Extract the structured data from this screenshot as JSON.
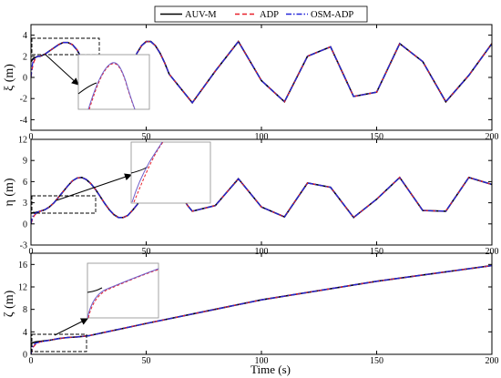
{
  "chart_data": [
    {
      "type": "line",
      "ylabel": "ξ (m)",
      "xlim": [
        0,
        200
      ],
      "ylim": [
        -5,
        5
      ],
      "yticks": [
        -4,
        -2,
        0,
        2,
        4
      ],
      "xticks": [
        0,
        50,
        100,
        150,
        200
      ],
      "legend": "top-center",
      "series": [
        {
          "name": "AUV-M",
          "color": "#000000",
          "style": "solid",
          "x": [
            0,
            1,
            2,
            3,
            4,
            5,
            6,
            8,
            10,
            12,
            14,
            16,
            18,
            20,
            22,
            24,
            26,
            28,
            30,
            32,
            34,
            36,
            38,
            40,
            42,
            44,
            46,
            48,
            50,
            52,
            54,
            56,
            58,
            60,
            70,
            80,
            90,
            100,
            110,
            120,
            130,
            140,
            150,
            160,
            170,
            180,
            190,
            200
          ],
          "y": [
            1.5,
            1.8,
            1.9,
            2.0,
            2.0,
            2.1,
            2.2,
            2.5,
            2.8,
            3.1,
            3.3,
            3.3,
            3.1,
            2.6,
            1.8,
            0.9,
            -0.1,
            -1.1,
            -1.9,
            -2.3,
            -2.4,
            -2.1,
            -1.5,
            -0.6,
            0.4,
            1.4,
            2.3,
            3.0,
            3.4,
            3.4,
            3.0,
            2.3,
            1.4,
            0.3,
            -2.4,
            0.6,
            3.4,
            -0.3,
            -2.3,
            2.0,
            2.9,
            -1.8,
            -1.4,
            3.2,
            1.5,
            -2.3,
            0.2,
            3.2
          ]
        },
        {
          "name": "ADP",
          "color": "#e8202a",
          "style": "dashed",
          "x": [
            0,
            0.5,
            1,
            1.5,
            2,
            3,
            4,
            5,
            6,
            8,
            10,
            12,
            14,
            16,
            18,
            20,
            22,
            24,
            26,
            28,
            30,
            32,
            34,
            36,
            38,
            40,
            42,
            44,
            46,
            48,
            50,
            52,
            54,
            56,
            58,
            60,
            70,
            80,
            90,
            100,
            110,
            120,
            130,
            140,
            150,
            160,
            170,
            180,
            190,
            200
          ],
          "y": [
            0,
            0.8,
            1.3,
            1.6,
            1.8,
            2.0,
            2.0,
            2.1,
            2.2,
            2.5,
            2.8,
            3.1,
            3.3,
            3.3,
            3.1,
            2.6,
            1.8,
            0.9,
            -0.1,
            -1.1,
            -1.9,
            -2.3,
            -2.4,
            -2.1,
            -1.5,
            -0.6,
            0.4,
            1.4,
            2.3,
            3.0,
            3.4,
            3.4,
            3.0,
            2.3,
            1.4,
            0.3,
            -2.4,
            0.6,
            3.4,
            -0.3,
            -2.3,
            2.0,
            2.9,
            -1.8,
            -1.4,
            3.2,
            1.5,
            -2.3,
            0.2,
            3.2
          ]
        },
        {
          "name": "OSM-ADP",
          "color": "#2326d9",
          "style": "dashdot",
          "x": [
            0,
            0.5,
            1,
            1.5,
            2,
            3,
            4,
            5,
            6,
            8,
            10,
            12,
            14,
            16,
            18,
            20,
            22,
            24,
            26,
            28,
            30,
            32,
            34,
            36,
            38,
            40,
            42,
            44,
            46,
            48,
            50,
            52,
            54,
            56,
            58,
            60,
            70,
            80,
            90,
            100,
            110,
            120,
            130,
            140,
            150,
            160,
            170,
            180,
            190,
            200
          ],
          "y": [
            0,
            1.1,
            1.6,
            1.8,
            1.9,
            2.0,
            2.0,
            2.1,
            2.2,
            2.5,
            2.8,
            3.1,
            3.3,
            3.3,
            3.1,
            2.6,
            1.8,
            0.9,
            -0.1,
            -1.1,
            -1.9,
            -2.3,
            -2.4,
            -2.1,
            -1.5,
            -0.6,
            0.4,
            1.4,
            2.3,
            3.0,
            3.4,
            3.4,
            3.0,
            2.3,
            1.4,
            0.3,
            -2.4,
            0.6,
            3.4,
            -0.3,
            -2.3,
            2.0,
            2.9,
            -1.8,
            -1.4,
            3.2,
            1.5,
            -2.3,
            0.2,
            3.2
          ]
        }
      ]
    },
    {
      "type": "line",
      "ylabel": "η (m)",
      "xlim": [
        0,
        200
      ],
      "ylim": [
        -3,
        12
      ],
      "yticks": [
        -3,
        0,
        3,
        6,
        9,
        12
      ],
      "xticks": [
        0,
        50,
        100,
        150,
        200
      ],
      "series": [
        {
          "name": "AUV-M",
          "color": "#000000",
          "style": "solid",
          "x": [
            0,
            1,
            2,
            3,
            4,
            6,
            8,
            10,
            12,
            14,
            16,
            18,
            20,
            22,
            24,
            26,
            28,
            30,
            32,
            34,
            36,
            38,
            40,
            42,
            44,
            46,
            48,
            50,
            52,
            54,
            56,
            58,
            60,
            62,
            64,
            66,
            68,
            70,
            80,
            90,
            100,
            110,
            120,
            130,
            140,
            150,
            160,
            170,
            180,
            190,
            200
          ],
          "y": [
            1.5,
            1.6,
            1.6,
            1.7,
            1.8,
            2.0,
            2.4,
            3.0,
            3.8,
            4.6,
            5.4,
            6.1,
            6.5,
            6.6,
            6.3,
            5.7,
            4.9,
            3.9,
            2.9,
            2.0,
            1.3,
            0.9,
            0.9,
            1.2,
            1.9,
            2.7,
            3.7,
            4.6,
            5.5,
            6.2,
            6.6,
            6.6,
            6.2,
            5.5,
            4.6,
            3.6,
            2.6,
            1.8,
            2.6,
            6.4,
            2.4,
            1.0,
            5.8,
            5.2,
            0.9,
            3.5,
            6.6,
            1.9,
            1.8,
            6.6,
            5.6
          ]
        },
        {
          "name": "ADP",
          "color": "#e8202a",
          "style": "dashed",
          "x": [
            0,
            0.5,
            1,
            1.5,
            2,
            3,
            4,
            6,
            8,
            10,
            12,
            14,
            16,
            18,
            20,
            22,
            24,
            26,
            28,
            30,
            32,
            34,
            36,
            38,
            40,
            42,
            44,
            46,
            48,
            50,
            52,
            54,
            56,
            58,
            60,
            62,
            64,
            66,
            68,
            70,
            80,
            90,
            100,
            110,
            120,
            130,
            140,
            150,
            160,
            170,
            180,
            190,
            200
          ],
          "y": [
            0,
            0.5,
            0.9,
            1.2,
            1.4,
            1.6,
            1.8,
            2.0,
            2.4,
            3.0,
            3.8,
            4.6,
            5.4,
            6.1,
            6.5,
            6.6,
            6.3,
            5.7,
            4.9,
            3.9,
            2.9,
            2.0,
            1.3,
            0.9,
            0.9,
            1.2,
            1.9,
            2.7,
            3.7,
            4.6,
            5.5,
            6.2,
            6.6,
            6.6,
            6.2,
            5.5,
            4.6,
            3.6,
            2.6,
            1.8,
            2.6,
            6.4,
            2.4,
            1.0,
            5.8,
            5.2,
            0.9,
            3.5,
            6.6,
            1.9,
            1.8,
            6.6,
            5.6
          ]
        },
        {
          "name": "OSM-ADP",
          "color": "#2326d9",
          "style": "dashdot",
          "x": [
            0,
            0.5,
            1,
            1.5,
            2,
            3,
            4,
            6,
            8,
            10,
            12,
            14,
            16,
            18,
            20,
            22,
            24,
            26,
            28,
            30,
            32,
            34,
            36,
            38,
            40,
            42,
            44,
            46,
            48,
            50,
            52,
            54,
            56,
            58,
            60,
            62,
            64,
            66,
            68,
            70,
            80,
            90,
            100,
            110,
            120,
            130,
            140,
            150,
            160,
            170,
            180,
            190,
            200
          ],
          "y": [
            0,
            0.8,
            1.2,
            1.4,
            1.5,
            1.7,
            1.8,
            2.0,
            2.4,
            3.0,
            3.8,
            4.6,
            5.4,
            6.1,
            6.5,
            6.6,
            6.3,
            5.7,
            4.9,
            3.9,
            2.9,
            2.0,
            1.3,
            0.9,
            0.9,
            1.2,
            1.9,
            2.7,
            3.7,
            4.6,
            5.5,
            6.2,
            6.6,
            6.6,
            6.2,
            5.5,
            4.6,
            3.6,
            2.6,
            1.8,
            2.6,
            6.4,
            2.4,
            1.0,
            5.8,
            5.2,
            0.9,
            3.5,
            6.6,
            1.9,
            1.8,
            6.6,
            5.6
          ]
        }
      ]
    },
    {
      "type": "line",
      "ylabel": "ζ (m)",
      "xlabel": "Time (s)",
      "xlim": [
        0,
        200
      ],
      "ylim": [
        0,
        18
      ],
      "yticks": [
        0,
        4,
        8,
        12,
        16
      ],
      "xticks": [
        0,
        50,
        100,
        150,
        200
      ],
      "series": [
        {
          "name": "AUV-M",
          "color": "#000000",
          "style": "solid",
          "x": [
            0,
            1,
            2,
            4,
            8,
            12,
            16,
            20,
            25,
            50,
            100,
            150,
            200
          ],
          "y": [
            2.0,
            2.1,
            2.2,
            2.3,
            2.5,
            2.8,
            3.0,
            3.1,
            3.3,
            5.5,
            9.7,
            13.0,
            15.8
          ]
        },
        {
          "name": "ADP",
          "color": "#e8202a",
          "style": "dashed",
          "x": [
            0,
            0.5,
            1,
            2,
            3,
            4,
            8,
            12,
            16,
            20,
            25,
            50,
            100,
            150,
            200
          ],
          "y": [
            0,
            0.8,
            1.3,
            1.8,
            2.0,
            2.2,
            2.5,
            2.8,
            3.0,
            3.1,
            3.3,
            5.5,
            9.7,
            13.0,
            15.8
          ]
        },
        {
          "name": "OSM-ADP",
          "color": "#2326d9",
          "style": "dashdot",
          "x": [
            0,
            0.5,
            1,
            2,
            3,
            4,
            8,
            12,
            16,
            20,
            25,
            50,
            100,
            150,
            200
          ],
          "y": [
            0,
            1.1,
            1.6,
            2.0,
            2.1,
            2.2,
            2.5,
            2.8,
            3.0,
            3.1,
            3.3,
            5.5,
            9.7,
            13.0,
            15.8
          ]
        }
      ]
    }
  ]
}
